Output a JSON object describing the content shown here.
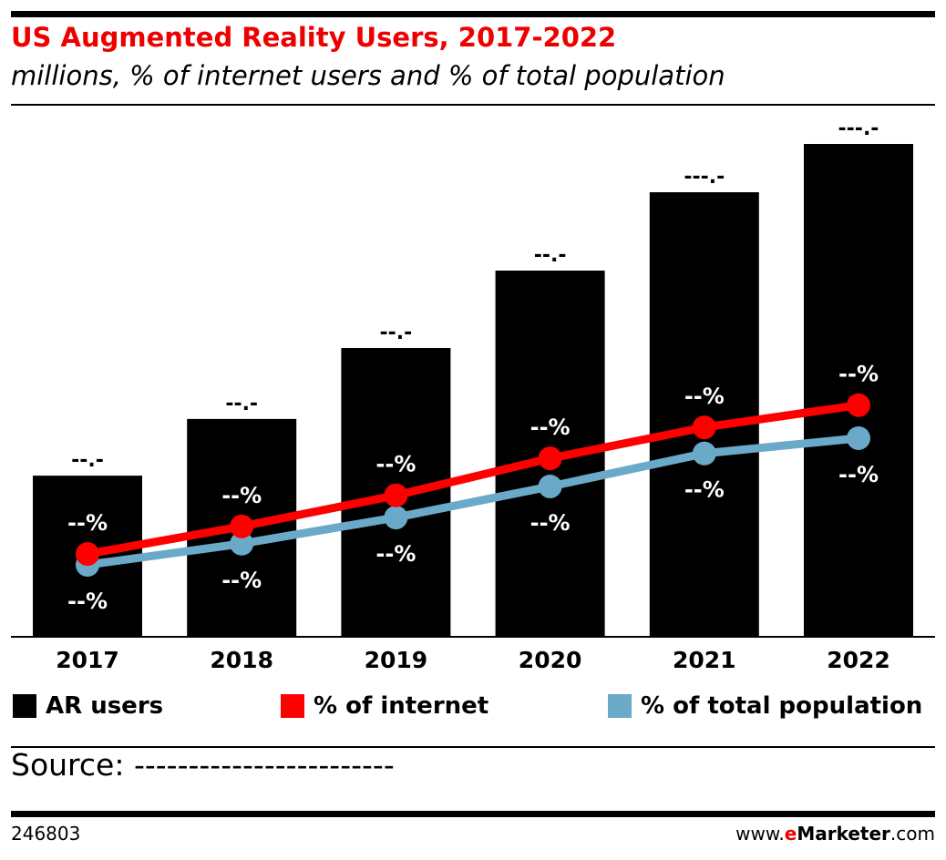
{
  "header": {
    "title": "US Augmented Reality Users, 2017-2022",
    "subtitle": "millions, % of internet users and % of total population"
  },
  "chart_data": {
    "type": "bar",
    "title": "US Augmented Reality Users, 2017-2022",
    "subtitle": "millions, % of internet users and % of total population",
    "categories": [
      "2017",
      "2018",
      "2019",
      "2020",
      "2021",
      "2022"
    ],
    "series": [
      {
        "name": "AR users",
        "type": "bar",
        "color": "#000000",
        "values": [
          32.7,
          44.2,
          58.6,
          74.3,
          90.2,
          100
        ],
        "labels": [
          "--.-",
          "--.-",
          "--.-",
          "--.-",
          "---.-",
          "---.-"
        ]
      },
      {
        "name": "% of internet",
        "type": "line",
        "color": "#ff0000",
        "values": [
          16.8,
          22.4,
          28.7,
          36.2,
          42.5,
          47.0
        ],
        "labels": [
          "--%",
          "--%",
          "--%",
          "--%",
          "--%",
          "--%"
        ]
      },
      {
        "name": "% of total population",
        "type": "line",
        "color": "#6aaac8",
        "values": [
          14.6,
          18.9,
          24.2,
          30.5,
          37.2,
          40.3
        ],
        "labels": [
          "--%",
          "--%",
          "--%",
          "--%",
          "--%",
          "--%"
        ]
      }
    ],
    "grid": false,
    "legend": "bottom"
  },
  "legend": [
    "AR users",
    "% of internet",
    "% of total population"
  ],
  "footer": {
    "source": "Source: ------------------------",
    "id": "246803",
    "brand_pre": "www.",
    "brand_e": "e",
    "brand_mid": "Marketer",
    "brand_post": ".com"
  }
}
